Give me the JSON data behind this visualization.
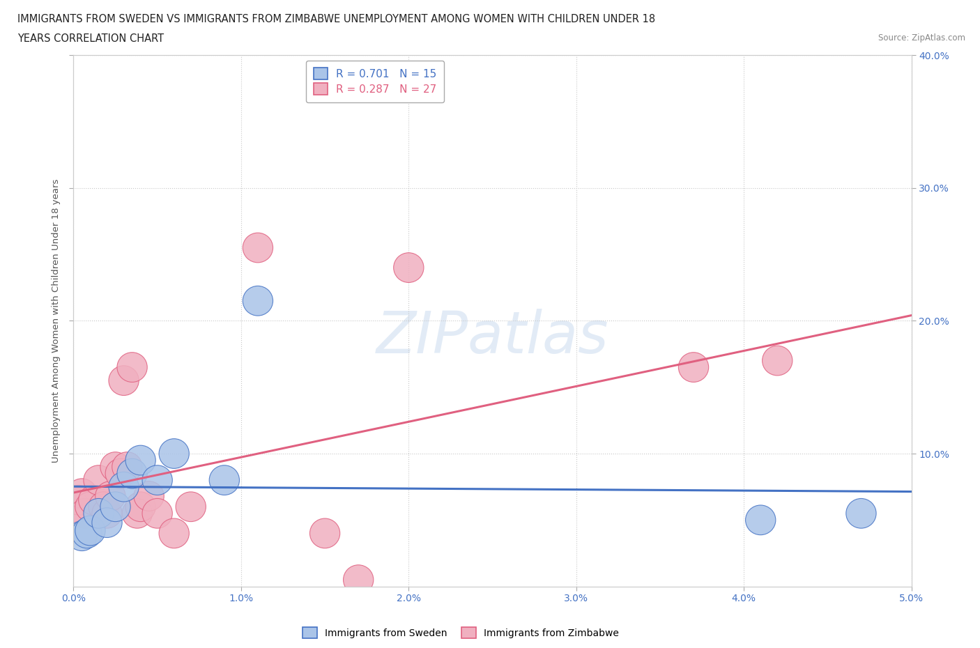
{
  "title_line1": "IMMIGRANTS FROM SWEDEN VS IMMIGRANTS FROM ZIMBABWE UNEMPLOYMENT AMONG WOMEN WITH CHILDREN UNDER 18",
  "title_line2": "YEARS CORRELATION CHART",
  "source": "Source: ZipAtlas.com",
  "ylabel": "Unemployment Among Women with Children Under 18 years",
  "xlim": [
    0.0,
    0.05
  ],
  "ylim": [
    0.0,
    0.4
  ],
  "xticks": [
    0.0,
    0.01,
    0.02,
    0.03,
    0.04,
    0.05
  ],
  "yticks": [
    0.1,
    0.2,
    0.3,
    0.4
  ],
  "ytick_labels": [
    "10.0%",
    "20.0%",
    "30.0%",
    "40.0%"
  ],
  "xtick_labels": [
    "0.0%",
    "1.0%",
    "2.0%",
    "3.0%",
    "4.0%",
    "5.0%"
  ],
  "background_color": "#ffffff",
  "grid_color": "#c8c8c8",
  "sweden_color": "#aac4e8",
  "zimbabwe_color": "#f0b0c0",
  "sweden_R": 0.701,
  "sweden_N": 15,
  "zimbabwe_R": 0.287,
  "zimbabwe_N": 27,
  "sweden_line_color": "#4472c4",
  "zimbabwe_line_color": "#e06080",
  "watermark_text": "ZIPatlas",
  "sweden_x": [
    0.0005,
    0.0008,
    0.001,
    0.0015,
    0.002,
    0.0025,
    0.003,
    0.0035,
    0.004,
    0.005,
    0.006,
    0.009,
    0.011,
    0.041,
    0.047
  ],
  "sweden_y": [
    0.038,
    0.04,
    0.042,
    0.055,
    0.048,
    0.06,
    0.075,
    0.085,
    0.095,
    0.08,
    0.1,
    0.08,
    0.215,
    0.05,
    0.055
  ],
  "zimbabwe_x": [
    0.0001,
    0.0003,
    0.0005,
    0.0007,
    0.001,
    0.0012,
    0.0015,
    0.0018,
    0.002,
    0.0022,
    0.0025,
    0.0028,
    0.003,
    0.0032,
    0.0035,
    0.0038,
    0.004,
    0.0045,
    0.005,
    0.006,
    0.007,
    0.011,
    0.015,
    0.017,
    0.02,
    0.037,
    0.042
  ],
  "zimbabwe_y": [
    0.06,
    0.065,
    0.07,
    0.055,
    0.06,
    0.065,
    0.08,
    0.06,
    0.055,
    0.068,
    0.09,
    0.085,
    0.155,
    0.09,
    0.165,
    0.055,
    0.06,
    0.068,
    0.055,
    0.04,
    0.06,
    0.255,
    0.04,
    0.005,
    0.24,
    0.165,
    0.17
  ]
}
